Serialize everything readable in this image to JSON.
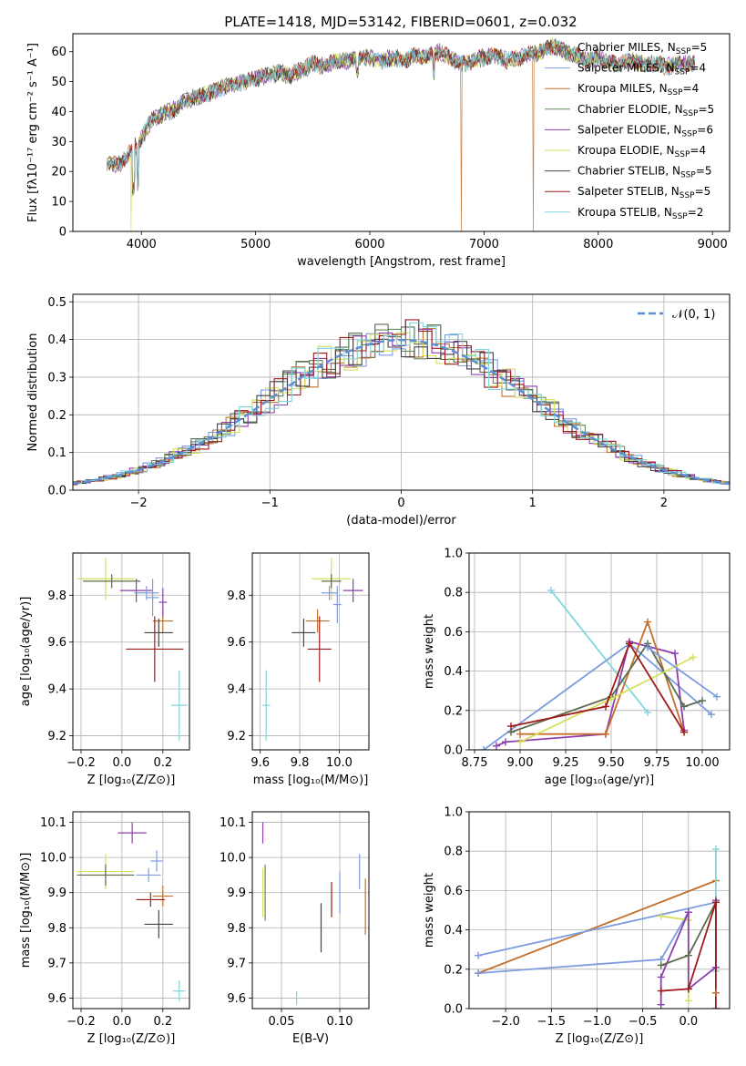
{
  "figure": {
    "title": "PLATE=1418, MJD=53142, FIBERID=0601, z=0.032"
  },
  "colors": {
    "Chabrier MILES": "#5b6b4d",
    "Salpeter MILES": "#7d9be0",
    "Kroupa MILES": "#c46f2a",
    "Chabrier ELODIE": "#5e8a5e",
    "Salpeter ELODIE": "#8c3fb0",
    "Kroupa ELODIE": "#d6e05a",
    "Chabrier STELIB": "#444444",
    "Salpeter STELIB": "#a11a1a",
    "Kroupa STELIB": "#7fd6dd",
    "normal": "#5b8fd6"
  },
  "chart_data": [
    {
      "id": "spectrum",
      "type": "line",
      "title": "PLATE=1418, MJD=53142, FIBERID=0601, z=0.032",
      "xlabel": "wavelength [Angstrom, rest frame]",
      "ylabel": "Flux [fλ10⁻¹⁷ erg cm⁻² s⁻¹ A⁻¹]",
      "xlim": [
        3400,
        9150
      ],
      "ylim": [
        0,
        66
      ],
      "xticks": [
        4000,
        5000,
        6000,
        7000,
        8000,
        9000
      ],
      "yticks": [
        0,
        10,
        20,
        30,
        40,
        50,
        60
      ],
      "legend_position": "right",
      "grid": false,
      "legend": [
        "Chabrier MILES, N_SSP=5",
        "Salpeter MILES, N_SSP=4",
        "Kroupa MILES, N_SSP=4",
        "Chabrier ELODIE, N_SSP=5",
        "Salpeter ELODIE, N_SSP=6",
        "Kroupa ELODIE, N_SSP=4",
        "Chabrier STELIB, N_SSP=5",
        "Salpeter STELIB, N_SSP=5",
        "Kroupa STELIB, N_SSP=2"
      ],
      "continuum": {
        "x": [
          3700,
          3800,
          3900,
          4000,
          4100,
          4200,
          4300,
          4400,
          4500,
          4600,
          4700,
          4800,
          4900,
          5000,
          5100,
          5200,
          5300,
          5400,
          5500,
          5600,
          5700,
          5800,
          5900,
          6000,
          6100,
          6200,
          6300,
          6400,
          6500,
          6600,
          6700,
          6800,
          6900,
          7000,
          7100,
          7200,
          7300,
          7400,
          7500,
          7600,
          7700,
          7800,
          7900,
          8000,
          8100,
          8200,
          8300,
          8400,
          8500,
          8600,
          8700,
          8800
        ],
        "y": [
          23,
          22,
          26,
          31,
          38,
          39,
          41,
          44,
          45,
          46,
          48,
          49,
          50,
          51,
          52,
          53,
          52,
          54,
          56,
          55,
          57,
          57,
          58,
          58,
          57,
          58,
          57,
          59,
          58,
          60,
          58,
          56,
          57,
          58,
          59,
          57,
          58,
          59,
          60,
          62,
          60,
          59,
          57,
          58,
          56,
          56,
          57,
          56,
          56,
          55,
          56,
          56
        ]
      },
      "dropouts": [
        {
          "x": 3910,
          "series": "Kroupa ELODIE"
        },
        {
          "x": 6800,
          "series": "Kroupa MILES"
        },
        {
          "x": 7430,
          "series": "Kroupa MILES"
        }
      ]
    },
    {
      "id": "residual-histogram",
      "type": "line",
      "xlabel": "(data-model)/error",
      "ylabel": "Normed distribution",
      "xlim": [
        -2.5,
        2.5
      ],
      "ylim": [
        0,
        0.52
      ],
      "xticks": [
        -2,
        -1,
        0,
        1,
        2
      ],
      "yticks": [
        0.0,
        0.1,
        0.2,
        0.3,
        0.4,
        0.5
      ],
      "grid": true,
      "legend": [
        "𝒩(0, 1)"
      ],
      "legend_position": "top-right",
      "normal_curve": {
        "mu": 0,
        "sigma": 1
      },
      "bin_width": 0.1
    },
    {
      "id": "age-vs-Z",
      "type": "scatter",
      "xlabel": "Z [log₁₀(Z/Z⊙)]",
      "ylabel": "age  [log₁₀(age/yr)]",
      "xlim": [
        -0.24,
        0.33
      ],
      "ylim": [
        9.14,
        9.98
      ],
      "xticks": [
        -0.2,
        0.0,
        0.2
      ],
      "yticks": [
        9.2,
        9.4,
        9.6,
        9.8
      ],
      "grid": true,
      "points": [
        {
          "series": "Kroupa ELODIE",
          "x": -0.08,
          "y": 9.87,
          "xerr": 0.14,
          "yerr": 0.09
        },
        {
          "series": "Chabrier MILES",
          "x": -0.05,
          "y": 9.86,
          "xerr": 0.14,
          "yerr": 0.03
        },
        {
          "series": "Salpeter ELODIE",
          "x": 0.07,
          "y": 9.82,
          "xerr": 0.08,
          "yerr": 0.05
        },
        {
          "series": "Salpeter MILES",
          "x": 0.12,
          "y": 9.81,
          "xerr": 0.06,
          "yerr": 0.03
        },
        {
          "series": "Kroupa MILES",
          "x": 0.2,
          "y": 9.69,
          "xerr": 0.05,
          "yerr": 0.05
        },
        {
          "series": "Chabrier STELIB",
          "x": 0.18,
          "y": 9.64,
          "xerr": 0.07,
          "yerr": 0.06
        },
        {
          "series": "Salpeter STELIB",
          "x": 0.16,
          "y": 9.57,
          "xerr": 0.14,
          "yerr": 0.14
        },
        {
          "series": "Kroupa STELIB",
          "x": 0.28,
          "y": 9.33,
          "xerr": 0.04,
          "yerr": 0.15
        },
        {
          "series": "Salpeter MILES",
          "x": 0.15,
          "y": 9.79,
          "xerr": 0.03,
          "yerr": 0.08
        },
        {
          "series": "Salpeter ELODIE",
          "x": 0.2,
          "y": 9.77,
          "xerr": 0.02,
          "yerr": 0.06
        }
      ]
    },
    {
      "id": "age-vs-mass",
      "type": "scatter",
      "xlabel": "mass [log₁₀(M/M⊙)]",
      "ylabel": "",
      "xlim": [
        9.56,
        10.15
      ],
      "ylim": [
        9.14,
        9.98
      ],
      "xticks": [
        9.6,
        9.8,
        10.0
      ],
      "yticks": [
        9.2,
        9.4,
        9.6,
        9.8
      ],
      "grid": true,
      "points": [
        {
          "series": "Kroupa ELODIE",
          "x": 9.96,
          "y": 9.87,
          "xerr": 0.1,
          "yerr": 0.09
        },
        {
          "series": "Chabrier MILES",
          "x": 9.96,
          "y": 9.86,
          "xerr": 0.05,
          "yerr": 0.03
        },
        {
          "series": "Salpeter ELODIE",
          "x": 10.07,
          "y": 9.82,
          "xerr": 0.05,
          "yerr": 0.05
        },
        {
          "series": "Salpeter MILES",
          "x": 9.95,
          "y": 9.81,
          "xerr": 0.04,
          "yerr": 0.03
        },
        {
          "series": "Kroupa MILES",
          "x": 9.89,
          "y": 9.69,
          "xerr": 0.06,
          "yerr": 0.05
        },
        {
          "series": "Chabrier STELIB",
          "x": 9.82,
          "y": 9.64,
          "xerr": 0.06,
          "yerr": 0.06
        },
        {
          "series": "Salpeter STELIB",
          "x": 9.9,
          "y": 9.57,
          "xerr": 0.06,
          "yerr": 0.14
        },
        {
          "series": "Kroupa STELIB",
          "x": 9.63,
          "y": 9.33,
          "xerr": 0.02,
          "yerr": 0.15
        },
        {
          "series": "Salpeter MILES",
          "x": 9.99,
          "y": 9.76,
          "xerr": 0.02,
          "yerr": 0.08
        }
      ]
    },
    {
      "id": "mass-weight-vs-age",
      "type": "line",
      "xlabel": "age  [log₁₀(age/yr)]",
      "ylabel": "mass weight",
      "xlim": [
        8.72,
        10.15
      ],
      "ylim": [
        0,
        1
      ],
      "xticks": [
        8.75,
        9.0,
        9.25,
        9.5,
        9.75,
        10.0
      ],
      "yticks": [
        0.0,
        0.2,
        0.4,
        0.6,
        0.8,
        1.0
      ],
      "grid": true,
      "series": [
        {
          "name": "Kroupa STELIB",
          "x": [
            9.17,
            9.7
          ],
          "y": [
            0.81,
            0.19
          ]
        },
        {
          "name": "Salpeter MILES",
          "x": [
            8.8,
            9.6,
            10.05
          ],
          "y": [
            0.0,
            0.54,
            0.18
          ]
        },
        {
          "name": "Salpeter ELODIE",
          "x": [
            8.87,
            8.92,
            9.47,
            9.6,
            9.85,
            9.9
          ],
          "y": [
            0.02,
            0.04,
            0.08,
            0.55,
            0.49,
            0.1
          ]
        },
        {
          "name": "Kroupa MILES",
          "x": [
            9.0,
            9.47,
            9.7,
            9.9
          ],
          "y": [
            0.08,
            0.08,
            0.65,
            0.09
          ]
        },
        {
          "name": "Chabrier MILES",
          "x": [
            8.95,
            9.5,
            9.7,
            9.9,
            10.0
          ],
          "y": [
            0.09,
            0.27,
            0.54,
            0.22,
            0.25
          ]
        },
        {
          "name": "Kroupa ELODIE",
          "x": [
            9.0,
            9.5,
            9.95
          ],
          "y": [
            0.04,
            0.26,
            0.47
          ]
        },
        {
          "name": "Salpeter STELIB",
          "x": [
            8.95,
            9.47,
            9.6,
            9.9
          ],
          "y": [
            0.12,
            0.22,
            0.54,
            0.09
          ]
        },
        {
          "name": "Salpeter MILES",
          "x": [
            9.7,
            10.08
          ],
          "y": [
            0.52,
            0.27
          ]
        }
      ]
    },
    {
      "id": "mass-vs-Z",
      "type": "scatter",
      "xlabel": "Z [log₁₀(Z/Z⊙)]",
      "ylabel": "mass [log₁₀(M/M⊙)]",
      "xlim": [
        -0.24,
        0.33
      ],
      "ylim": [
        9.57,
        10.13
      ],
      "xticks": [
        -0.2,
        0.0,
        0.2
      ],
      "yticks": [
        9.6,
        9.7,
        9.8,
        9.9,
        10.0,
        10.1
      ],
      "grid": true,
      "points": [
        {
          "series": "Salpeter ELODIE",
          "x": 0.05,
          "y": 10.07,
          "xerr": 0.07,
          "yerr": 0.03
        },
        {
          "series": "Salpeter MILES",
          "x": 0.17,
          "y": 9.99,
          "xerr": 0.03,
          "yerr": 0.03
        },
        {
          "series": "Kroupa ELODIE",
          "x": -0.08,
          "y": 9.96,
          "xerr": 0.14,
          "yerr": 0.05
        },
        {
          "series": "Chabrier MILES",
          "x": -0.08,
          "y": 9.95,
          "xerr": 0.14,
          "yerr": 0.03
        },
        {
          "series": "Salpeter MILES",
          "x": 0.13,
          "y": 9.95,
          "xerr": 0.06,
          "yerr": 0.02
        },
        {
          "series": "Kroupa MILES",
          "x": 0.2,
          "y": 9.89,
          "xerr": 0.05,
          "yerr": 0.03
        },
        {
          "series": "Salpeter STELIB",
          "x": 0.14,
          "y": 9.88,
          "xerr": 0.07,
          "yerr": 0.02
        },
        {
          "series": "Chabrier STELIB",
          "x": 0.18,
          "y": 9.81,
          "xerr": 0.07,
          "yerr": 0.04
        },
        {
          "series": "Kroupa STELIB",
          "x": 0.28,
          "y": 9.62,
          "xerr": 0.03,
          "yerr": 0.03
        }
      ]
    },
    {
      "id": "mass-vs-ebv",
      "type": "scatter",
      "xlabel": "E(B-V)",
      "ylabel": "",
      "xlim": [
        0.025,
        0.125
      ],
      "ylim": [
        9.57,
        10.13
      ],
      "xticks": [
        0.05,
        0.1
      ],
      "yticks": [
        9.6,
        9.7,
        9.8,
        9.9,
        10.0,
        10.1
      ],
      "grid": true,
      "points": [
        {
          "series": "Salpeter ELODIE",
          "x": 0.034,
          "y": 10.07,
          "yerr": 0.03
        },
        {
          "series": "Kroupa ELODIE",
          "x": 0.034,
          "y": 9.9,
          "yerr": 0.07
        },
        {
          "series": "Chabrier ELODIE",
          "x": 0.036,
          "y": 9.9,
          "yerr": 0.08
        },
        {
          "series": "Kroupa STELIB",
          "x": 0.063,
          "y": 9.6,
          "yerr": 0.02
        },
        {
          "series": "Chabrier STELIB",
          "x": 0.084,
          "y": 9.8,
          "yerr": 0.07
        },
        {
          "series": "Salpeter STELIB",
          "x": 0.093,
          "y": 9.88,
          "yerr": 0.05
        },
        {
          "series": "Salpeter MILES",
          "x": 0.1,
          "y": 9.9,
          "yerr": 0.06
        },
        {
          "series": "Salpeter MILES",
          "x": 0.117,
          "y": 9.96,
          "yerr": 0.05
        },
        {
          "series": "Kroupa MILES",
          "x": 0.122,
          "y": 9.86,
          "yerr": 0.08
        }
      ]
    },
    {
      "id": "mass-weight-vs-Z",
      "type": "line",
      "xlabel": "Z [log₁₀(Z/Z⊙)]",
      "ylabel": "mass weight",
      "xlim": [
        -2.4,
        0.45
      ],
      "ylim": [
        0,
        1
      ],
      "xticks": [
        -2.0,
        -1.5,
        -1.0,
        -0.5,
        0.0
      ],
      "yticks": [
        0.0,
        0.2,
        0.4,
        0.6,
        0.8,
        1.0
      ],
      "grid": true,
      "series": [
        {
          "name": "Kroupa MILES",
          "x": [
            -2.3,
            0.3
          ],
          "y": [
            0.18,
            0.65
          ]
        },
        {
          "name": "Salpeter MILES",
          "x": [
            -2.3,
            0.3
          ],
          "y": [
            0.27,
            0.54
          ]
        },
        {
          "name": "Salpeter MILES",
          "x": [
            -2.3,
            -0.3,
            0.0
          ],
          "y": [
            0.18,
            0.25,
            0.49
          ]
        },
        {
          "name": "Kroupa STELIB",
          "x": [
            0.3,
            0.3
          ],
          "y": [
            0.19,
            0.81
          ]
        },
        {
          "name": "Kroupa ELODIE",
          "x": [
            -0.3,
            0.0,
            0.0
          ],
          "y": [
            0.47,
            0.45,
            0.04
          ]
        },
        {
          "name": "Salpeter ELODIE",
          "x": [
            -0.3,
            -0.3,
            0.0,
            0.0,
            0.3,
            0.3
          ],
          "y": [
            0.02,
            0.16,
            0.49,
            0.1,
            0.21,
            0.55
          ]
        },
        {
          "name": "Chabrier MILES",
          "x": [
            -0.3,
            0.0,
            0.3
          ],
          "y": [
            0.22,
            0.27,
            0.54
          ]
        },
        {
          "name": "Salpeter STELIB",
          "x": [
            -0.3,
            0.0,
            0.3,
            0.3
          ],
          "y": [
            0.09,
            0.1,
            0.54,
            0.0
          ]
        },
        {
          "name": "Kroupa MILES",
          "x": [
            0.3,
            0.3
          ],
          "y": [
            0.08,
            0.08
          ]
        }
      ]
    }
  ]
}
